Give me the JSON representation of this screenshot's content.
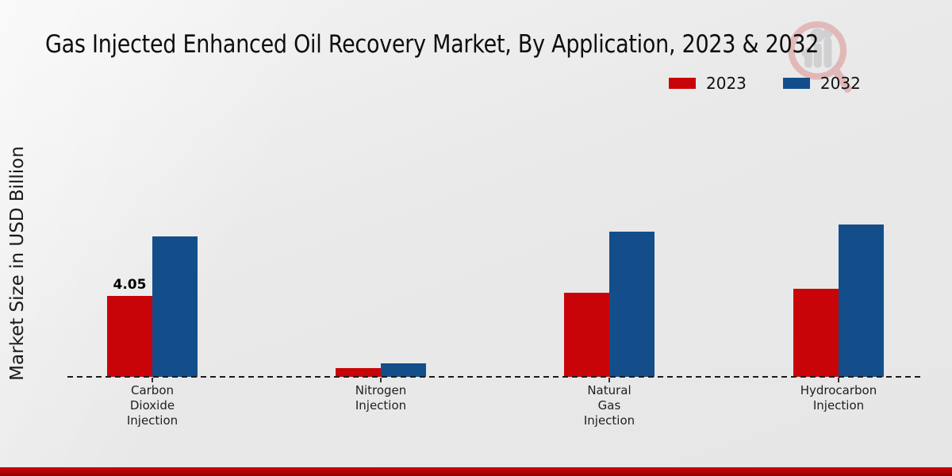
{
  "page": {
    "title": "Gas Injected Enhanced Oil Recovery Market, By Application, 2023 & 2032",
    "y_axis_label": "Market Size in USD Billion"
  },
  "legend": {
    "items": [
      {
        "label": "2023",
        "color": "#c90408"
      },
      {
        "label": "2032",
        "color": "#134e8b"
      }
    ]
  },
  "chart_data": {
    "type": "bar",
    "title": "Gas Injected Enhanced Oil Recovery Market, By Application, 2023 & 2032",
    "ylabel": "Market Size in USD Billion",
    "xlabel": "",
    "categories": [
      "Carbon Dioxide Injection",
      "Nitrogen Injection",
      "Natural Gas Injection",
      "Hydrocarbon Injection"
    ],
    "tick_label_lines": [
      [
        "Carbon",
        "Dioxide",
        "Injection"
      ],
      [
        "Nitrogen",
        "Injection"
      ],
      [
        "Natural",
        "Gas",
        "Injection"
      ],
      [
        "Hydrocarbon",
        "Injection"
      ]
    ],
    "series": [
      {
        "name": "2023",
        "color": "#c90408",
        "values": [
          4.05,
          0.44,
          4.2,
          4.4
        ]
      },
      {
        "name": "2032",
        "color": "#134e8b",
        "values": [
          7.03,
          0.68,
          7.28,
          7.61
        ]
      }
    ],
    "data_labels": [
      {
        "series_index": 0,
        "category_index": 0,
        "text": "4.05"
      }
    ],
    "ylim": [
      0,
      10
    ],
    "grid": false,
    "legend_position": "top-right",
    "baseline_style": "dashed"
  },
  "colors": {
    "bar_2023": "#c90408",
    "bar_2032": "#134e8b",
    "footer_accent": "#b00303",
    "axis": "#1c1c1c"
  },
  "watermark_icon": "magnifier-bar-chart-logo"
}
